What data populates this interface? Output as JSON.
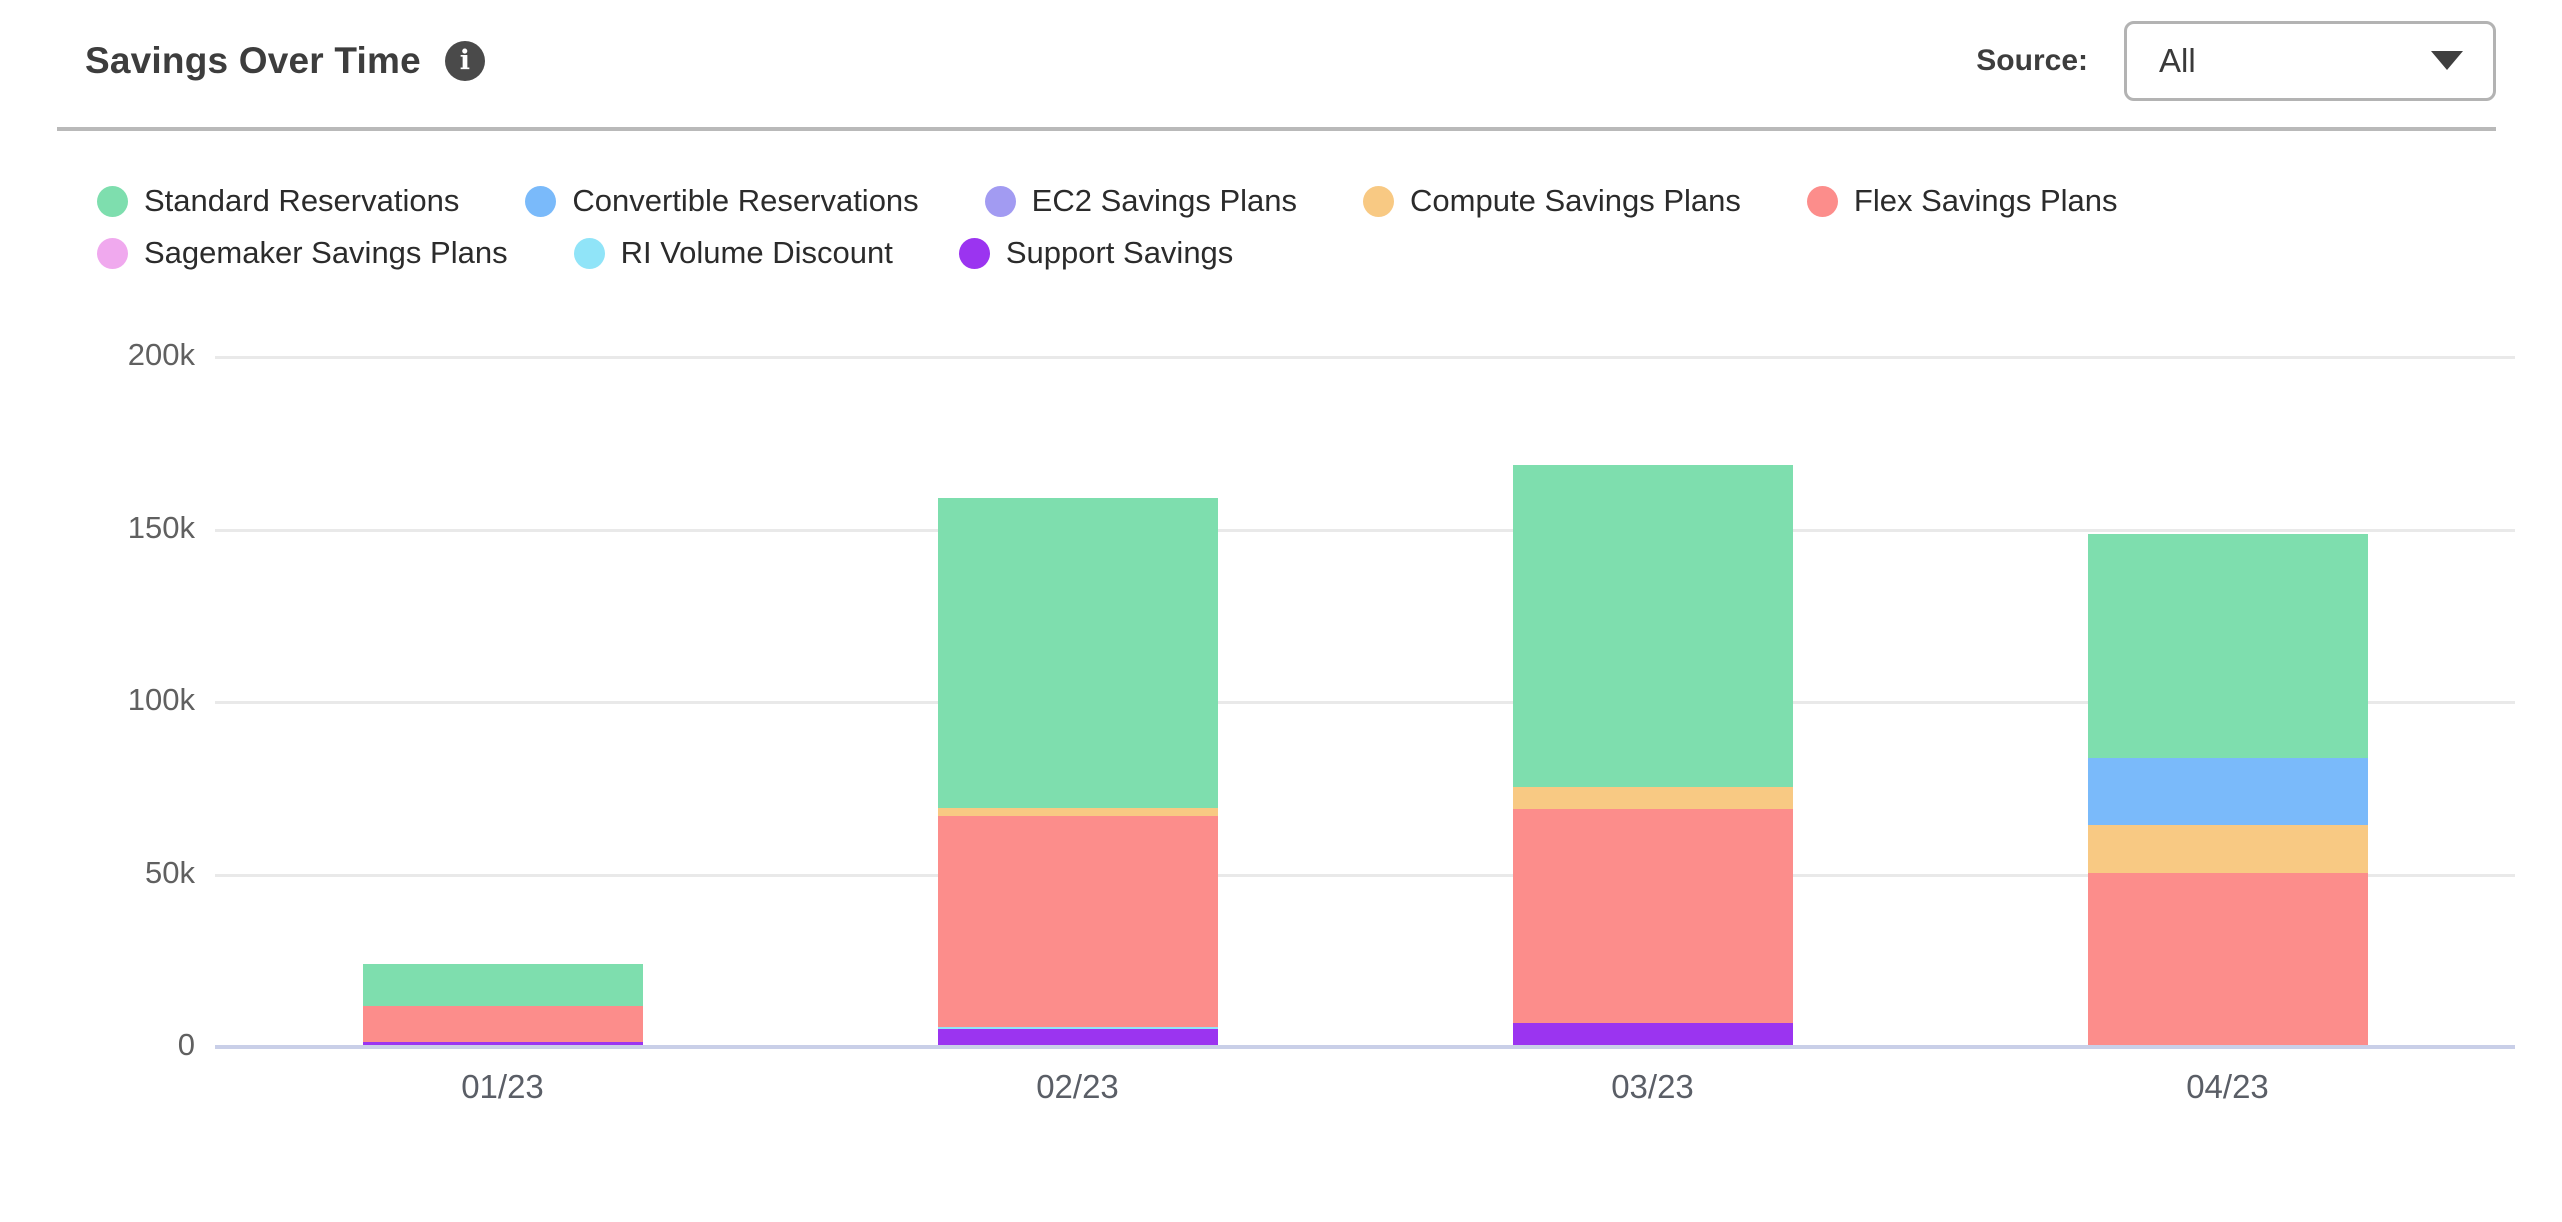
{
  "header": {
    "title": "Savings Over Time",
    "info_icon": "i",
    "source_label": "Source:",
    "source_value": "All"
  },
  "chart_data": {
    "type": "bar",
    "stacked": true,
    "title": "Savings Over Time",
    "categories": [
      "01/23",
      "02/23",
      "03/23",
      "04/23"
    ],
    "series": [
      {
        "name": "Standard Reservations",
        "color": "#7EDEAE",
        "values": [
          12400,
          90000,
          93400,
          64700
        ]
      },
      {
        "name": "Convertible Reservations",
        "color": "#7ABAFA",
        "values": [
          0,
          0,
          0,
          19600
        ]
      },
      {
        "name": "EC2 Savings Plans",
        "color": "#A29BF2",
        "values": [
          0,
          0,
          0,
          0
        ]
      },
      {
        "name": "Compute Savings Plans",
        "color": "#F8C983",
        "values": [
          0,
          2400,
          6400,
          13700
        ]
      },
      {
        "name": "Flex Savings Plans",
        "color": "#FC8D8B",
        "values": [
          10200,
          61000,
          62000,
          50000
        ]
      },
      {
        "name": "Sagemaker Savings Plans",
        "color": "#F0A9EE",
        "values": [
          0,
          0,
          0,
          0
        ]
      },
      {
        "name": "RI Volume Discount",
        "color": "#90E4F8",
        "values": [
          0,
          800,
          0,
          0
        ]
      },
      {
        "name": "Support Savings",
        "color": "#9B34F0",
        "values": [
          1000,
          4500,
          6300,
          0
        ]
      }
    ],
    "stack_order": "reverse of legend order (Support Savings at bottom, Standard Reservations on top)",
    "totals": [
      23600,
      158700,
      168100,
      148000
    ],
    "xlabel": "",
    "ylabel": "",
    "ylim": [
      0,
      200000
    ],
    "y_ticks": [
      {
        "label": "200k",
        "value": 200000
      },
      {
        "label": "150k",
        "value": 150000
      },
      {
        "label": "100k",
        "value": 100000
      },
      {
        "label": "50k",
        "value": 50000
      },
      {
        "label": "0",
        "value": 0
      }
    ],
    "grid": true,
    "legend_position": "top",
    "legend_wrap": 5,
    "axis_line_color": "#c9cfe8",
    "gridline_color": "#e9e9e9"
  }
}
